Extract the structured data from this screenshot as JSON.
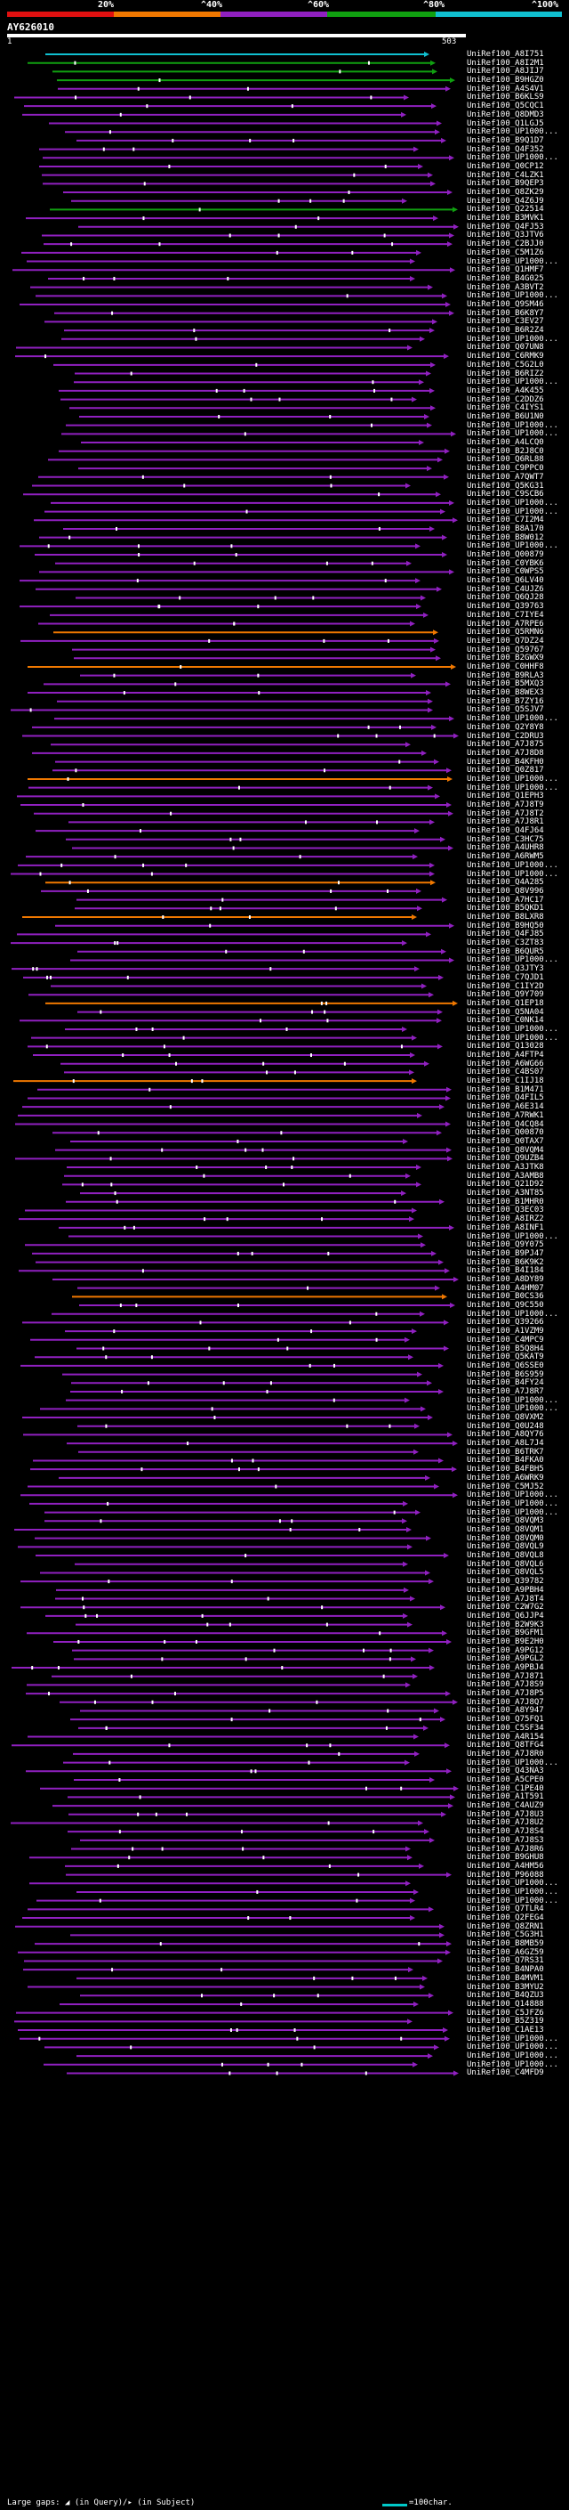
{
  "legend": {
    "labels": [
      "20%",
      "^40%",
      "^60%",
      "^80%",
      "^100%"
    ],
    "colors": [
      "#e01010",
      "#f07800",
      "#9020c0",
      "#10a010",
      "#10c0d0"
    ]
  },
  "query": {
    "name": "AY626010",
    "start": "1",
    "end": "503"
  },
  "hits": [
    "UniRef100_A8I751",
    "UniRef100_A8I2M1",
    "UniRef100_A8JIJ7",
    "UniRef100_B9HGZ0",
    "UniRef100_A4S4V1",
    "UniRef100_B6KLS9",
    "UniRef100_Q5CQC1",
    "UniRef100_Q8DMD3",
    "UniRef100_Q1LGJ5",
    "UniRef100_UP1000...",
    "UniRef100_B9Q1D7",
    "UniRef100_Q4F352",
    "UniRef100_UP1000...",
    "UniRef100_Q0CP12",
    "UniRef100_C4LZK1",
    "UniRef100_B9QEP3",
    "UniRef100_Q8ZK29",
    "UniRef100_Q4Z6J9",
    "UniRef100_Q22514",
    "UniRef100_B3MVK1",
    "UniRef100_Q4FJ53",
    "UniRef100_Q3JTV6",
    "UniRef100_C2BJJ0",
    "UniRef100_C5M1Z6",
    "UniRef100_UP1000...",
    "UniRef100_Q1HMF7",
    "UniRef100_B4G025",
    "UniRef100_A3BVT2",
    "UniRef100_UP1000...",
    "UniRef100_Q9SM46",
    "UniRef100_B6K8Y7",
    "UniRef100_C3EV27",
    "UniRef100_B6R2Z4",
    "UniRef100_UP1000...",
    "UniRef100_Q07UN8",
    "UniRef100_C6RMK9",
    "UniRef100_C5G2L0",
    "UniRef100_B6RIZ2",
    "UniRef100_UP1000...",
    "UniRef100_A4K455",
    "UniRef100_C2DDZ6",
    "UniRef100_C4IYS1",
    "UniRef100_B6U1N0",
    "UniRef100_UP1000...",
    "UniRef100_UP1000...",
    "UniRef100_A4LCQ0",
    "UniRef100_B2J8C0",
    "UniRef100_Q6RL88",
    "UniRef100_C9PPC0",
    "UniRef100_A7QWT7",
    "UniRef100_Q5KG31",
    "UniRef100_C9SCB6",
    "UniRef100_UP1000...",
    "UniRef100_UP1000...",
    "UniRef100_C7I2M4",
    "UniRef100_B8A170",
    "UniRef100_B8W012",
    "UniRef100_UP1000...",
    "UniRef100_Q00879",
    "UniRef100_C0YBK6",
    "UniRef100_C0WPS5",
    "UniRef100_Q6LV40",
    "UniRef100_C4UJZ6",
    "UniRef100_Q6QJ28",
    "UniRef100_Q39763",
    "UniRef100_C7IYE4",
    "UniRef100_A7RPE6",
    "UniRef100_Q5RMN6",
    "UniRef100_Q7DZ24",
    "UniRef100_Q59767",
    "UniRef100_B2GWX9",
    "UniRef100_C0HHF8",
    "UniRef100_B9RLA3",
    "UniRef100_B5MXQ3",
    "UniRef100_B8WEX3",
    "UniRef100_B7ZY16",
    "UniRef100_Q5SJV7",
    "UniRef100_UP1000...",
    "UniRef100_Q2Y8Y8",
    "UniRef100_C2DRU3",
    "UniRef100_A7J875",
    "UniRef100_A7J8D8",
    "UniRef100_B4KFH0",
    "UniRef100_Q0Z817",
    "UniRef100_UP1000...",
    "UniRef100_UP1000...",
    "UniRef100_Q1EPH3",
    "UniRef100_A7J8T9",
    "UniRef100_A7J8T2",
    "UniRef100_A7J8R1",
    "UniRef100_Q4FJ64",
    "UniRef100_C3HC75",
    "UniRef100_A4UHR8",
    "UniRef100_A6RWM5",
    "UniRef100_UP1000...",
    "UniRef100_UP1000...",
    "UniRef100_Q4A285",
    "UniRef100_Q8V996",
    "UniRef100_A7HC17",
    "UniRef100_B5QKD1",
    "UniRef100_B8LXR8",
    "UniRef100_B9HQ50",
    "UniRef100_Q4FJ85",
    "UniRef100_C3ZT83",
    "UniRef100_B6QUR5",
    "UniRef100_UP1000...",
    "UniRef100_Q3JTY3",
    "UniRef100_C7QJD1",
    "UniRef100_C1IY2D",
    "UniRef100_Q9Y709",
    "UniRef100_Q1EP18",
    "UniRef100_Q5NA04",
    "UniRef100_C0NK14",
    "UniRef100_UP1000...",
    "UniRef100_UP1000...",
    "UniRef100_Q13028",
    "UniRef100_A4FTP4",
    "UniRef100_A6WG66",
    "UniRef100_C4BS07",
    "UniRef100_C1IJ18",
    "UniRef100_B1M471",
    "UniRef100_Q4FIL5",
    "UniRef100_A6E314",
    "UniRef100_A7RWK1",
    "UniRef100_Q4CQ84",
    "UniRef100_Q00870",
    "UniRef100_Q0TAX7",
    "UniRef100_Q8VQM4",
    "UniRef100_Q9UZB4",
    "UniRef100_A3JTK8",
    "UniRef100_A3AMB8",
    "UniRef100_Q21D92",
    "UniRef100_A3NT85",
    "UniRef100_B1MHR0",
    "UniRef100_Q3EC03",
    "UniRef100_A8IRZ2",
    "UniRef100_A8INF1",
    "UniRef100_UP1000...",
    "UniRef100_Q9Y075",
    "UniRef100_B9PJ47",
    "UniRef100_B6K9K2",
    "UniRef100_B4I184",
    "UniRef100_A8DY89",
    "UniRef100_A4HM07",
    "UniRef100_B0CS36",
    "UniRef100_Q9C550",
    "UniRef100_UP1000...",
    "UniRef100_Q39266",
    "UniRef100_A1VZM9",
    "UniRef100_C4MPC9",
    "UniRef100_B5Q8H4",
    "UniRef100_Q5KAT9",
    "UniRef100_Q6SSE0",
    "UniRef100_B6S959",
    "UniRef100_B4FY24",
    "UniRef100_A7J8R7",
    "UniRef100_UP1000...",
    "UniRef100_UP1000...",
    "UniRef100_Q8VXM2",
    "UniRef100_Q0U248",
    "UniRef100_A8QY76",
    "UniRef100_A8L7J4",
    "UniRef100_B6TRK7",
    "UniRef100_B4FKA0",
    "UniRef100_B4FBH5",
    "UniRef100_A6WRK9",
    "UniRef100_C5MJ52",
    "UniRef100_UP1000...",
    "UniRef100_UP1000...",
    "UniRef100_UP1000...",
    "UniRef100_Q8VQM3",
    "UniRef100_Q8VQM1",
    "UniRef100_Q8VQM0",
    "UniRef100_Q8VQL9",
    "UniRef100_Q8VQL8",
    "UniRef100_Q8VQL6",
    "UniRef100_Q8VQL5",
    "UniRef100_Q39782",
    "UniRef100_A9PBH4",
    "UniRef100_A7J8T4",
    "UniRef100_C2W7G2",
    "UniRef100_Q6JJP4",
    "UniRef100_B2W9K3",
    "UniRef100_B9GFM1",
    "UniRef100_B9E2H0",
    "UniRef100_A9PG12",
    "UniRef100_A9PGL2",
    "UniRef100_A9PBJ4",
    "UniRef100_A7J871",
    "UniRef100_A7J8S9",
    "UniRef100_A7J8P5",
    "UniRef100_A7J8Q7",
    "UniRef100_A8Y947",
    "UniRef100_Q75FQ1",
    "UniRef100_C5SF34",
    "UniRef100_A4R154",
    "UniRef100_Q8TFG4",
    "UniRef100_A7J8R0",
    "UniRef100_UP1000...",
    "UniRef100_Q43NA3",
    "UniRef100_A5CPE0",
    "UniRef100_C1PE40",
    "UniRef100_A1T591",
    "UniRef100_C4AUZ9",
    "UniRef100_A7J8U3",
    "UniRef100_A7J8U2",
    "UniRef100_A7J8S4",
    "UniRef100_A7J8S3",
    "UniRef100_A7J8R6",
    "UniRef100_B9GHU8",
    "UniRef100_A4HM56",
    "UniRef100_P96088",
    "UniRef100_UP1000...",
    "UniRef100_UP1000...",
    "UniRef100_UP1000...",
    "UniRef100_Q7TLR4",
    "UniRef100_Q2FEG4",
    "UniRef100_Q8ZRN1",
    "UniRef100_C5G3H1",
    "UniRef100_B8MB59",
    "UniRef100_A6GZ59",
    "UniRef100_Q7RS31",
    "UniRef100_B4NPA0",
    "UniRef100_B4MVM1",
    "UniRef100_B3MYU2",
    "UniRef100_B4QZU3",
    "UniRef100_Q14888",
    "UniRef100_C5JFZ6",
    "UniRef100_B5Z319",
    "UniRef100_C1AE13",
    "UniRef100_UP1000...",
    "UniRef100_UP1000...",
    "UniRef100_UP1000...",
    "UniRef100_UP1000...",
    "UniRef100_C4MFD9"
  ],
  "footer": {
    "gap_text": "Large gaps: ◢ (in Query)/▸ (in Subject)",
    "scale_text": "=100char."
  }
}
